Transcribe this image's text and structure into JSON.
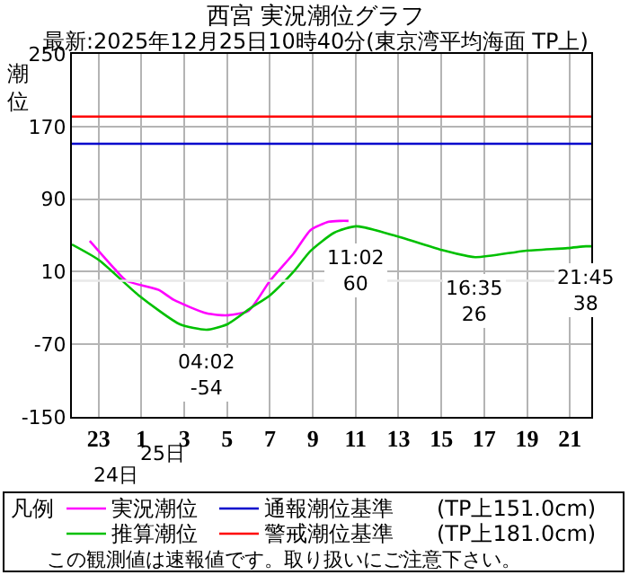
{
  "chart_data": {
    "type": "line",
    "title": "西宮 実況潮位グラフ",
    "subtitle": "最新:2025年12月25日10時40分(東京湾平均海面 TP上)",
    "ylabel": "潮位",
    "legend_title": "凡例",
    "legend": "bottom",
    "grid": true,
    "xlim": [
      "2025-12-24T21:45",
      "2025-12-25T22:00"
    ],
    "xticks": [
      {
        "value": "2025-12-24T23:00",
        "label": "23"
      },
      {
        "value": "2025-12-25T01:00",
        "label": "1"
      },
      {
        "value": "2025-12-25T03:00",
        "label": "3"
      },
      {
        "value": "2025-12-25T05:00",
        "label": "5"
      },
      {
        "value": "2025-12-25T07:00",
        "label": "7"
      },
      {
        "value": "2025-12-25T09:00",
        "label": "9"
      },
      {
        "value": "2025-12-25T11:00",
        "label": "11"
      },
      {
        "value": "2025-12-25T13:00",
        "label": "13"
      },
      {
        "value": "2025-12-25T15:00",
        "label": "15"
      },
      {
        "value": "2025-12-25T17:00",
        "label": "17"
      },
      {
        "value": "2025-12-25T19:00",
        "label": "19"
      },
      {
        "value": "2025-12-25T21:00",
        "label": "21"
      }
    ],
    "ylim": [
      -150,
      250
    ],
    "yticks": [
      -150,
      -70,
      10,
      90,
      170,
      250
    ],
    "series": [
      {
        "name": "実況潮位",
        "color": "#ff00ff",
        "x": [
          "2025-12-24T22:35",
          "2025-12-24T23:45",
          "2025-12-25T00:18",
          "2025-12-25T01:48",
          "2025-12-25T02:30",
          "2025-12-25T04:03",
          "2025-12-25T05:00",
          "2025-12-25T06:00",
          "2025-12-25T07:00",
          "2025-12-25T08:06",
          "2025-12-25T08:54",
          "2025-12-25T09:45",
          "2025-12-25T10:18",
          "2025-12-25T10:40"
        ],
        "values": [
          44,
          13,
          0,
          -10,
          -21,
          -36,
          -38,
          -33,
          0,
          30,
          56,
          65,
          66,
          66
        ]
      },
      {
        "name": "推算潮位",
        "color": "#00c000",
        "x": [
          "2025-12-24T21:45",
          "2025-12-24T23:00",
          "2025-12-25T00:52",
          "2025-12-25T02:48",
          "2025-12-25T04:02",
          "2025-12-25T05:00",
          "2025-12-25T06:06",
          "2025-12-25T07:00",
          "2025-12-25T08:06",
          "2025-12-25T08:54",
          "2025-12-25T10:00",
          "2025-12-25T11:02",
          "2025-12-25T12:48",
          "2025-12-25T15:00",
          "2025-12-25T16:35",
          "2025-12-25T18:54",
          "2025-12-25T20:54",
          "2025-12-25T21:45",
          "2025-12-25T22:00"
        ],
        "values": [
          40,
          23,
          -16,
          -48,
          -54,
          -48,
          -30,
          -16,
          10,
          33,
          53,
          60,
          50,
          34,
          26,
          33,
          36,
          38,
          38
        ]
      }
    ],
    "ref_lines": [
      {
        "axis": "y",
        "value": 151,
        "label": "通報潮位基準　　(TP上151.0cm)",
        "color": "#0000cc"
      },
      {
        "axis": "y",
        "value": 181,
        "label": "警戒潮位基準　　(TP上181.0cm)",
        "color": "#ff0000"
      },
      {
        "axis": "y",
        "value": 0,
        "color": "#e8e8e8"
      }
    ],
    "annotations": [
      {
        "text": "04:02\n-54",
        "x": "2025-12-25T04:02",
        "y": -54
      },
      {
        "text": "11:02\n60",
        "x": "2025-12-25T11:02",
        "y": 60
      },
      {
        "text": "16:35\n26",
        "x": "2025-12-25T16:35",
        "y": 26
      },
      {
        "text": "21:45\n38",
        "x": "2025-12-25T21:45",
        "y": 38
      },
      "25日",
      "24日",
      "この観測値は速報値です。取り扱いにご注意下さい。"
    ]
  }
}
